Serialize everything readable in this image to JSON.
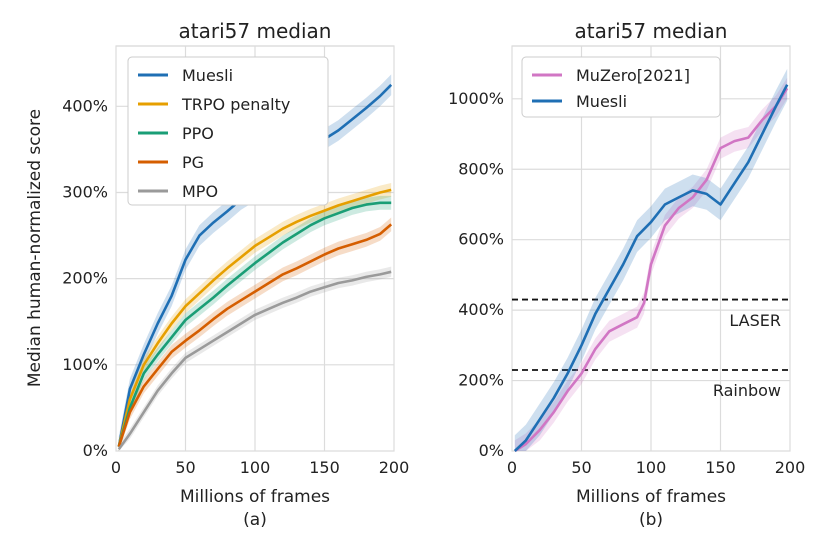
{
  "chart_data": [
    {
      "type": "line",
      "panel_label": "(a)",
      "title": "atari57 median",
      "xlabel": "Millions of frames",
      "ylabel": "Median human-normalized score",
      "xlim": [
        0,
        200
      ],
      "ylim": [
        0,
        470
      ],
      "xticks": [
        0,
        50,
        100,
        150,
        200
      ],
      "xtick_labels": [
        "0",
        "50",
        "100",
        "150",
        "200"
      ],
      "yticks": [
        0,
        100,
        200,
        300,
        400
      ],
      "ytick_labels": [
        "0%",
        "100%",
        "200%",
        "300%",
        "400%"
      ],
      "grid": true,
      "legend_position": "top-left",
      "series": [
        {
          "name": "Muesli",
          "color": "#1f6fb4",
          "x": [
            2,
            10,
            20,
            30,
            40,
            50,
            60,
            70,
            80,
            90,
            100,
            110,
            120,
            130,
            140,
            150,
            160,
            170,
            180,
            190,
            198
          ],
          "y": [
            5,
            72,
            112,
            148,
            180,
            222,
            250,
            265,
            278,
            292,
            302,
            318,
            332,
            342,
            352,
            362,
            372,
            385,
            398,
            412,
            425
          ],
          "band": 12
        },
        {
          "name": "TRPO penalty",
          "color": "#e69f00",
          "x": [
            2,
            10,
            20,
            30,
            40,
            50,
            60,
            70,
            80,
            90,
            100,
            110,
            120,
            130,
            140,
            150,
            160,
            170,
            180,
            190,
            198
          ],
          "y": [
            5,
            60,
            100,
            125,
            148,
            168,
            183,
            198,
            212,
            225,
            238,
            248,
            258,
            266,
            273,
            279,
            285,
            290,
            295,
            300,
            303
          ],
          "band": 8
        },
        {
          "name": "PPO",
          "color": "#1a9e76",
          "x": [
            2,
            10,
            20,
            30,
            40,
            50,
            60,
            70,
            80,
            90,
            100,
            110,
            120,
            130,
            140,
            150,
            160,
            170,
            180,
            190,
            198
          ],
          "y": [
            5,
            50,
            90,
            112,
            132,
            152,
            165,
            178,
            192,
            205,
            218,
            230,
            242,
            252,
            262,
            270,
            276,
            282,
            286,
            288,
            288
          ],
          "band": 8
        },
        {
          "name": "PG",
          "color": "#d55e00",
          "x": [
            2,
            10,
            20,
            30,
            40,
            50,
            60,
            70,
            80,
            90,
            100,
            110,
            120,
            130,
            140,
            150,
            160,
            170,
            180,
            190,
            198
          ],
          "y": [
            5,
            45,
            75,
            95,
            115,
            128,
            140,
            153,
            165,
            175,
            185,
            195,
            205,
            212,
            220,
            228,
            235,
            240,
            245,
            252,
            263
          ],
          "band": 8
        },
        {
          "name": "MPO",
          "color": "#9a9a9a",
          "x": [
            2,
            10,
            20,
            30,
            40,
            50,
            60,
            70,
            80,
            90,
            100,
            110,
            120,
            130,
            140,
            150,
            160,
            170,
            180,
            190,
            198
          ],
          "y": [
            2,
            20,
            45,
            70,
            90,
            108,
            118,
            128,
            138,
            148,
            158,
            165,
            172,
            178,
            185,
            190,
            195,
            198,
            202,
            205,
            208
          ],
          "band": 6
        }
      ]
    },
    {
      "type": "line",
      "panel_label": "(b)",
      "title": "atari57 median",
      "xlabel": "Millions of frames",
      "ylabel": "",
      "xlim": [
        0,
        200
      ],
      "ylim": [
        0,
        1150
      ],
      "xticks": [
        0,
        50,
        100,
        150,
        200
      ],
      "xtick_labels": [
        "0",
        "50",
        "100",
        "150",
        "200"
      ],
      "yticks": [
        0,
        200,
        400,
        600,
        800,
        1000
      ],
      "ytick_labels": [
        "0%",
        "200%",
        "400%",
        "600%",
        "800%",
        "1000%"
      ],
      "grid": true,
      "legend_position": "top-left",
      "series": [
        {
          "name": "MuZero[2021]",
          "color": "#d176c4",
          "x": [
            2,
            10,
            20,
            30,
            40,
            50,
            60,
            70,
            80,
            90,
            95,
            100,
            110,
            120,
            130,
            140,
            150,
            160,
            170,
            180,
            190,
            198
          ],
          "y": [
            0,
            20,
            60,
            110,
            170,
            220,
            290,
            340,
            360,
            380,
            420,
            530,
            640,
            690,
            720,
            770,
            860,
            880,
            890,
            940,
            980,
            1030
          ],
          "band": 30
        },
        {
          "name": "Muesli",
          "color": "#1f6fb4",
          "x": [
            2,
            10,
            20,
            30,
            40,
            50,
            60,
            70,
            80,
            90,
            100,
            110,
            120,
            130,
            140,
            150,
            160,
            170,
            180,
            190,
            198
          ],
          "y": [
            0,
            30,
            90,
            150,
            220,
            300,
            390,
            460,
            530,
            610,
            650,
            700,
            720,
            740,
            730,
            700,
            760,
            820,
            900,
            980,
            1040
          ],
          "band": 45
        }
      ],
      "reference_lines": [
        {
          "name": "LASER",
          "y": 430
        },
        {
          "name": "Rainbow",
          "y": 230
        }
      ]
    }
  ]
}
